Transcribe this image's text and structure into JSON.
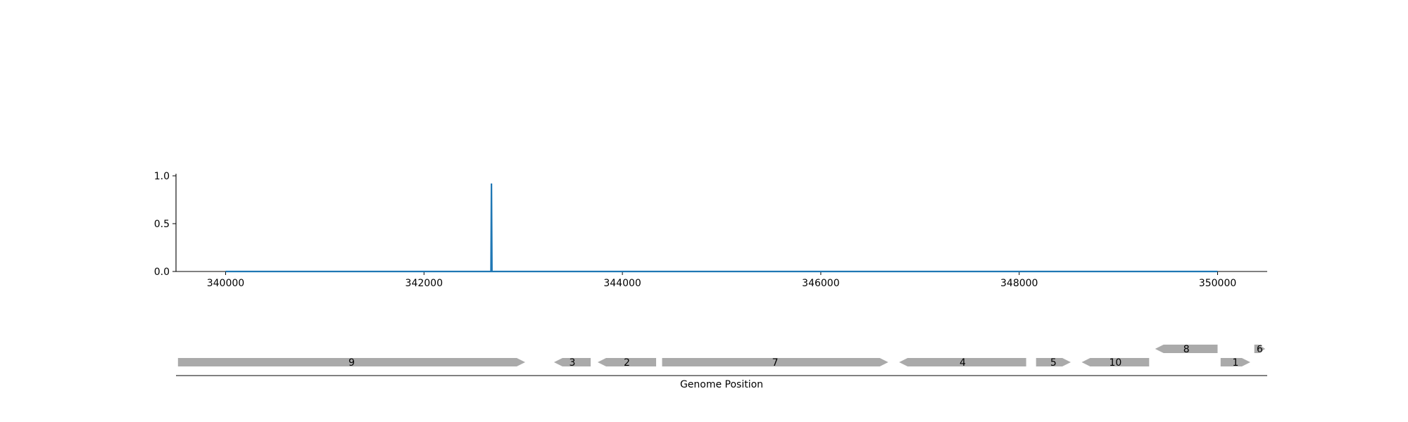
{
  "chart_data": [
    {
      "type": "line",
      "title": "",
      "xlabel": "",
      "ylabel": "",
      "xlim": [
        339500,
        350500
      ],
      "ylim": [
        0,
        1.0
      ],
      "xticks": [
        340000,
        342000,
        344000,
        346000,
        348000,
        350000
      ],
      "yticks": [
        "0.0",
        "0.5",
        "1.0"
      ],
      "grid": false,
      "series": [
        {
          "color": "#1f77b4",
          "x": [
            340000,
            342675,
            342680,
            342685,
            350000
          ],
          "y": [
            0,
            0,
            0.92,
            0,
            0
          ]
        }
      ]
    },
    {
      "type": "gene_map",
      "xlabel": "Genome Position",
      "xlim": [
        339500,
        350500
      ],
      "feature_color": "#aaaaaa",
      "features": [
        {
          "label": "9",
          "start": 339520,
          "end": 343020,
          "strand": "+",
          "track": 0
        },
        {
          "label": "3",
          "start": 343310,
          "end": 343680,
          "strand": "-",
          "track": 0
        },
        {
          "label": "2",
          "start": 343750,
          "end": 344340,
          "strand": "-",
          "track": 0
        },
        {
          "label": "7",
          "start": 344400,
          "end": 346680,
          "strand": "+",
          "track": 0
        },
        {
          "label": "4",
          "start": 346790,
          "end": 348070,
          "strand": "-",
          "track": 0
        },
        {
          "label": "5",
          "start": 348170,
          "end": 348520,
          "strand": "+",
          "track": 0
        },
        {
          "label": "10",
          "start": 348630,
          "end": 349310,
          "strand": "-",
          "track": 0
        },
        {
          "label": "8",
          "start": 349370,
          "end": 350000,
          "strand": "-",
          "track": 1
        },
        {
          "label": "1",
          "start": 350030,
          "end": 350330,
          "strand": "+",
          "track": 0
        },
        {
          "label": "6",
          "start": 350370,
          "end": 350480,
          "strand": "+",
          "track": 1
        }
      ]
    }
  ]
}
